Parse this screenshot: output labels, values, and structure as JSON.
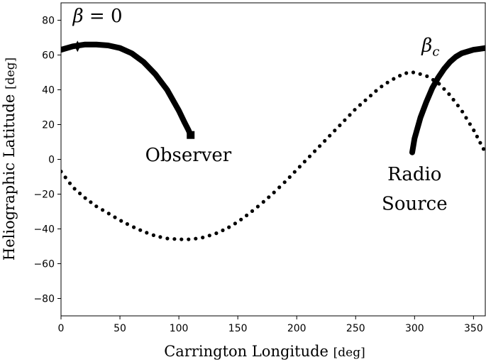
{
  "chart_data": {
    "type": "line",
    "title": "",
    "xlabel": "Carrington Longitude",
    "xunit": "[deg]",
    "ylabel": "Heliographic Latitude",
    "yunit": "[deg]",
    "xlim": [
      0,
      360
    ],
    "ylim": [
      -90,
      90
    ],
    "xticks": [
      0,
      50,
      100,
      150,
      200,
      250,
      300,
      350
    ],
    "yticks": [
      -80,
      -60,
      -40,
      -20,
      0,
      20,
      40,
      60,
      80
    ],
    "grid": false,
    "series": [
      {
        "style": "thick-line",
        "x": [
          0,
          10,
          20,
          30,
          40,
          50,
          60,
          70,
          80,
          90,
          100,
          105,
          108,
          110
        ],
        "y": [
          63,
          65,
          66,
          66,
          65.5,
          64,
          61,
          56,
          49,
          40,
          28,
          21,
          17,
          14
        ]
      },
      {
        "style": "thick-line",
        "x": [
          298,
          300,
          305,
          310,
          315,
          320,
          325,
          330,
          335,
          340,
          345,
          350,
          355,
          360
        ],
        "y": [
          4,
          12,
          24,
          33,
          41,
          47,
          52,
          56,
          59,
          61,
          62,
          63,
          63.5,
          64
        ]
      },
      {
        "style": "dotted",
        "x": [
          0,
          10,
          20,
          30,
          40,
          50,
          60,
          70,
          80,
          90,
          100,
          110,
          120,
          130,
          140,
          150,
          160,
          170,
          180,
          190,
          200,
          210,
          220,
          230,
          240,
          250,
          260,
          270,
          280,
          290,
          295,
          300,
          310,
          320,
          330,
          340,
          350,
          360
        ],
        "y": [
          -7,
          -16,
          -22,
          -27,
          -31,
          -35,
          -38.5,
          -41.5,
          -44,
          -45.5,
          -46,
          -46,
          -45,
          -43,
          -40,
          -36,
          -31,
          -25.5,
          -19.5,
          -13,
          -6,
          1,
          8,
          15,
          22,
          29,
          35,
          41,
          45.5,
          49,
          50,
          50,
          48,
          44,
          37,
          28,
          17,
          4
        ]
      }
    ],
    "markers": [
      {
        "symbol": "diamond",
        "x": 14,
        "y": 65
      },
      {
        "symbol": "square",
        "x": 110,
        "y": 14
      }
    ],
    "annotations": [
      {
        "id": "beta0",
        "math": "β",
        "text": " = 0",
        "x": 10,
        "y": 79
      },
      {
        "id": "betac",
        "math": "β",
        "sub": "c",
        "x": 306,
        "y": 62
      },
      {
        "id": "observer",
        "text": "Observer",
        "x": 108,
        "y": -1
      },
      {
        "id": "radio",
        "text": "Radio",
        "x": 300,
        "y": -12
      },
      {
        "id": "source",
        "text": "Source",
        "x": 300,
        "y": -29
      }
    ]
  }
}
